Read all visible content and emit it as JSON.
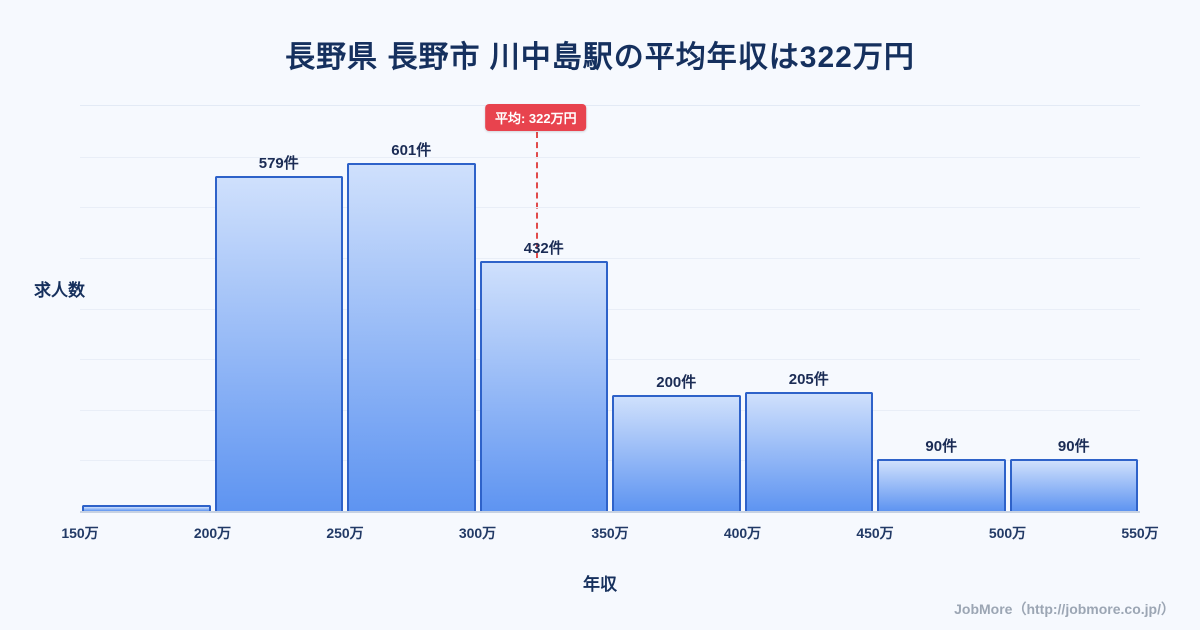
{
  "title": "長野県 長野市 川中島駅の平均年収は322万円",
  "footer": "JobMore（http://jobmore.co.jp/）",
  "chart_data": {
    "type": "bar",
    "subtype": "histogram",
    "title": "長野県 長野市 川中島駅の平均年収は322万円",
    "xlabel": "年収",
    "ylabel": "求人数",
    "x_tick_labels": [
      "150万",
      "200万",
      "250万",
      "300万",
      "350万",
      "400万",
      "450万",
      "500万",
      "550万"
    ],
    "bin_edges_man_yen": [
      150,
      200,
      250,
      300,
      350,
      400,
      450,
      500,
      550
    ],
    "values": [
      10,
      579,
      601,
      432,
      200,
      205,
      90,
      90
    ],
    "bar_labels": [
      "",
      "579件",
      "601件",
      "432件",
      "200件",
      "205件",
      "90件",
      "90件"
    ],
    "ylim": [
      0,
      700
    ],
    "x_range": [
      150,
      550
    ],
    "average": {
      "value": 322,
      "label": "平均: 322万円"
    },
    "grid": "horizontal",
    "legend": "none",
    "colors": {
      "background": "#f6f9fe",
      "bar_fill_top": "#cfe0fc",
      "bar_fill_bottom": "#5e94f1",
      "bar_border": "#2e62c9",
      "average_line": "#e14b4b",
      "badge_background": "#e8434e",
      "badge_text": "#ffffff",
      "title_text": "#15305e",
      "axis_text": "#223a66",
      "footer_text": "#9ca6b4"
    }
  }
}
